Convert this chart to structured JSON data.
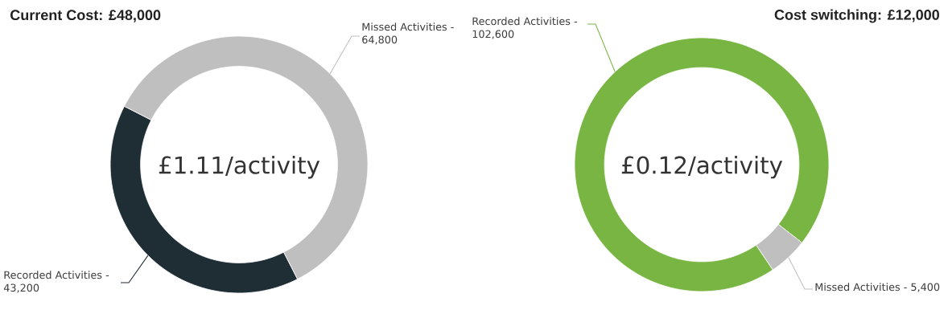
{
  "chart_data": [
    {
      "type": "donut",
      "title": "Current Cost: £48,000",
      "categories": [
        "Recorded Activities -",
        "Missed Activities -"
      ],
      "values": [
        43200,
        64800
      ],
      "colors": [
        "#1f2d35",
        "#bfbfbf"
      ],
      "value_labels": [
        "43,200",
        "64,800"
      ],
      "annotations": [
        "£1.11/activity"
      ]
    },
    {
      "type": "donut",
      "title": "Cost switching: £12,000",
      "categories": [
        "Recorded Activities -",
        "Missed Activities -"
      ],
      "values": [
        102600,
        5400
      ],
      "colors": [
        "#79b543",
        "#bfbfbf"
      ],
      "value_labels": [
        "102,600",
        "5,400"
      ],
      "annotations": [
        "£0.12/activity"
      ]
    }
  ]
}
